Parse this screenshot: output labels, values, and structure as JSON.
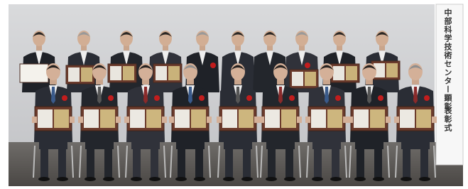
{
  "banner": {
    "title": "中部科学技術センター顕彰",
    "subtitle": "表彰式"
  }
}
